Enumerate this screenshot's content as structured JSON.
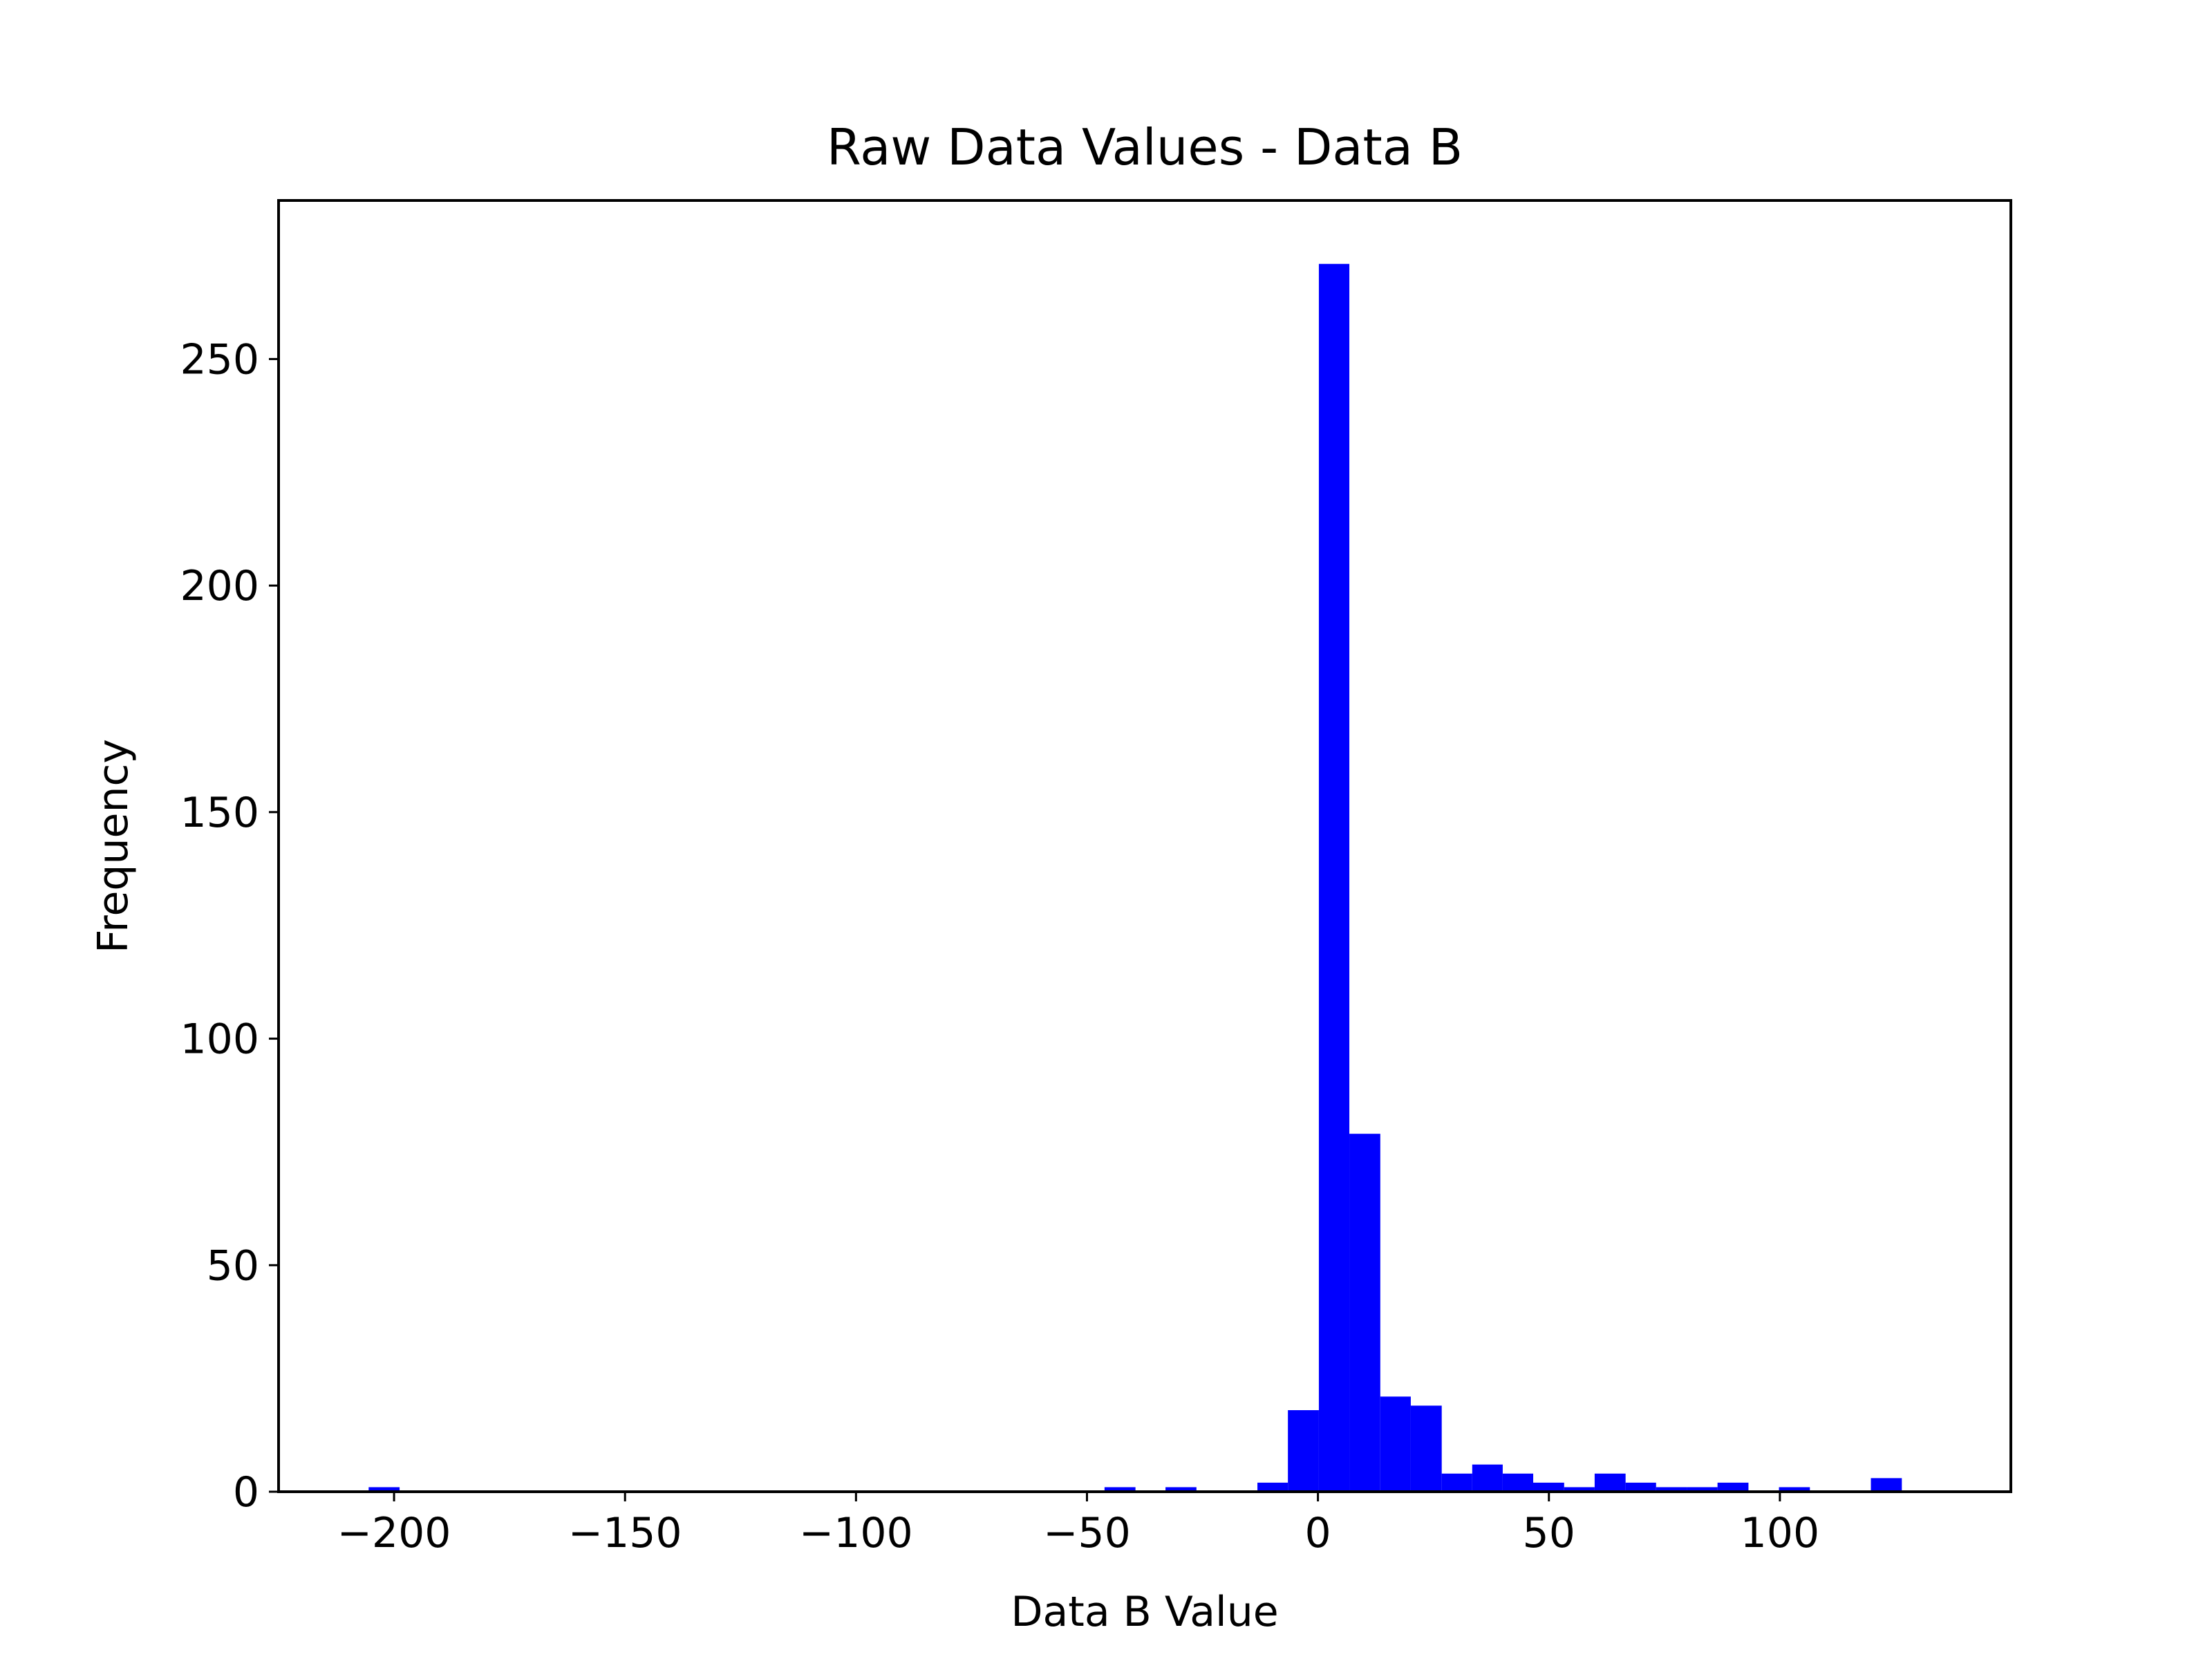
{
  "chart_data": {
    "type": "bar",
    "title": "Raw Data Values - Data B",
    "xlabel": "Data B Value",
    "ylabel": "Frequency",
    "bar_color": "#0000ff",
    "xlim": [
      -225,
      150
    ],
    "ylim": [
      0,
      285
    ],
    "xticks": [
      {
        "value": -200,
        "label": "−200"
      },
      {
        "value": -150,
        "label": "−150"
      },
      {
        "value": -100,
        "label": "−100"
      },
      {
        "value": -50,
        "label": "−50"
      },
      {
        "value": 0,
        "label": "0"
      },
      {
        "value": 50,
        "label": "50"
      },
      {
        "value": 100,
        "label": "100"
      }
    ],
    "yticks": [
      {
        "value": 0,
        "label": "0"
      },
      {
        "value": 50,
        "label": "50"
      },
      {
        "value": 100,
        "label": "100"
      },
      {
        "value": 150,
        "label": "150"
      },
      {
        "value": 200,
        "label": "200"
      },
      {
        "value": 250,
        "label": "250"
      }
    ],
    "bins": [
      {
        "x0": -205.5,
        "x1": -198.8,
        "value": 1
      },
      {
        "x0": -46.2,
        "x1": -39.5,
        "value": 1
      },
      {
        "x0": -33.0,
        "x1": -26.3,
        "value": 1
      },
      {
        "x0": -13.1,
        "x1": -6.5,
        "value": 2
      },
      {
        "x0": -6.5,
        "x1": 0.2,
        "value": 18
      },
      {
        "x0": 0.2,
        "x1": 6.8,
        "value": 271
      },
      {
        "x0": 6.8,
        "x1": 13.5,
        "value": 79
      },
      {
        "x0": 13.5,
        "x1": 20.1,
        "value": 21
      },
      {
        "x0": 20.1,
        "x1": 26.8,
        "value": 19
      },
      {
        "x0": 26.8,
        "x1": 33.4,
        "value": 4
      },
      {
        "x0": 33.4,
        "x1": 40.0,
        "value": 6
      },
      {
        "x0": 40.0,
        "x1": 46.6,
        "value": 4
      },
      {
        "x0": 46.6,
        "x1": 53.3,
        "value": 2
      },
      {
        "x0": 53.3,
        "x1": 59.9,
        "value": 1
      },
      {
        "x0": 59.9,
        "x1": 66.6,
        "value": 4
      },
      {
        "x0": 66.6,
        "x1": 73.2,
        "value": 2
      },
      {
        "x0": 73.2,
        "x1": 79.9,
        "value": 1
      },
      {
        "x0": 79.9,
        "x1": 86.5,
        "value": 1
      },
      {
        "x0": 86.5,
        "x1": 93.2,
        "value": 2
      },
      {
        "x0": 99.8,
        "x1": 106.5,
        "value": 1
      },
      {
        "x0": 119.7,
        "x1": 126.4,
        "value": 3
      }
    ]
  }
}
